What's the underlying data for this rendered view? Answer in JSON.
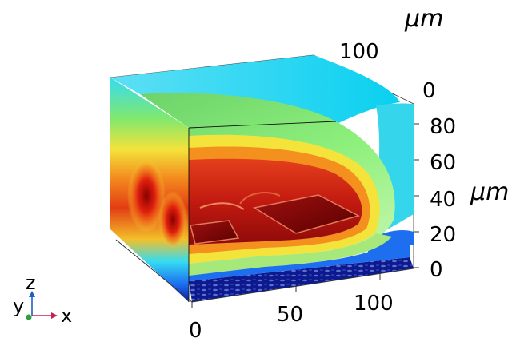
{
  "units": {
    "y_axis": "μm",
    "z_axis": "μm"
  },
  "axes": {
    "x_ticks": [
      "0",
      "50",
      "100"
    ],
    "y_ticks": [
      "100",
      "0"
    ],
    "z_ticks": [
      "80",
      "60",
      "40",
      "20",
      "0"
    ]
  },
  "triad": {
    "z": "z",
    "y": "y",
    "x": "x"
  },
  "colors": {
    "triad_z": "#1f5fbf",
    "triad_x": "#c81e50",
    "triad_y": "#2e9e3e",
    "colormap": [
      "#00007a",
      "#0d35d6",
      "#18a6ef",
      "#35dcf2",
      "#8be87a",
      "#f3e33a",
      "#f39a1e",
      "#e33d12",
      "#a50f0f",
      "#5a0000"
    ]
  }
}
